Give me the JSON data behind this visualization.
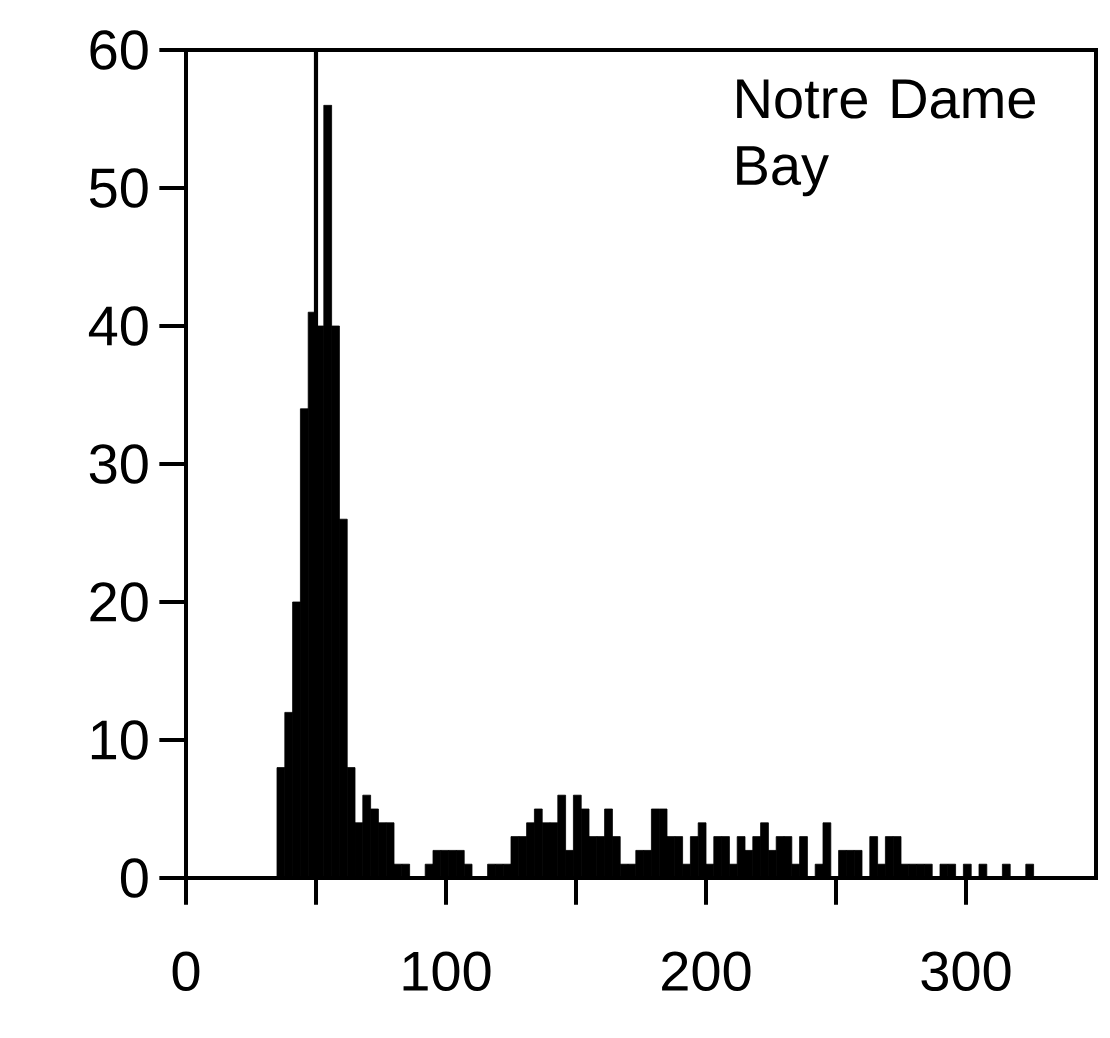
{
  "chart_data": {
    "type": "histogram",
    "bins": [
      35,
      38,
      41,
      44,
      47,
      50,
      53,
      56,
      59,
      62,
      65,
      68,
      71,
      74,
      77,
      80,
      83,
      86,
      89,
      92,
      95,
      98,
      101,
      104,
      107,
      110,
      113,
      116,
      119,
      122,
      125,
      128,
      131,
      134,
      137,
      140,
      143,
      146,
      149,
      152,
      155,
      158,
      161,
      164,
      167,
      170,
      173,
      176,
      179,
      182,
      185,
      188,
      191,
      194,
      197,
      200,
      203,
      206,
      209,
      212,
      215,
      218,
      221,
      224,
      227,
      230,
      233,
      236,
      239,
      242,
      245,
      248,
      251,
      254,
      257,
      260,
      263,
      266,
      269,
      272,
      275,
      278,
      281,
      284,
      287,
      290,
      293,
      296,
      299,
      302,
      305,
      308,
      311,
      314,
      317,
      320,
      323,
      326
    ],
    "values": [
      8,
      12,
      20,
      34,
      41,
      40,
      56,
      40,
      26,
      8,
      4,
      6,
      5,
      4,
      4,
      1,
      1,
      0,
      0,
      1,
      2,
      2,
      2,
      2,
      1,
      0,
      0,
      1,
      1,
      1,
      3,
      3,
      4,
      5,
      4,
      4,
      6,
      2,
      6,
      5,
      3,
      3,
      5,
      3,
      1,
      1,
      2,
      2,
      5,
      5,
      3,
      3,
      1,
      3,
      4,
      1,
      3,
      3,
      1,
      3,
      2,
      3,
      4,
      2,
      3,
      3,
      1,
      3,
      0,
      1,
      4,
      0,
      2,
      2,
      2,
      0,
      3,
      1,
      3,
      3,
      1,
      1,
      1,
      1,
      0,
      1,
      1,
      0,
      1,
      0,
      1,
      0,
      0,
      1,
      0,
      0,
      1
    ],
    "color": "#000000",
    "xlim": [
      0,
      350
    ],
    "ylim": [
      0,
      60
    ],
    "xticks": [
      0,
      {
        "value": 50,
        "label": null
      },
      100,
      {
        "value": 150,
        "label": null
      },
      200,
      {
        "value": 250,
        "label": null
      },
      300
    ],
    "yticks": [
      0,
      10,
      20,
      30,
      40,
      50,
      60
    ],
    "ref_lines": [
      {
        "axis": "x",
        "value": 50,
        "color": "#000000"
      }
    ],
    "annotations": [
      "Notre Dame Bay"
    ]
  }
}
